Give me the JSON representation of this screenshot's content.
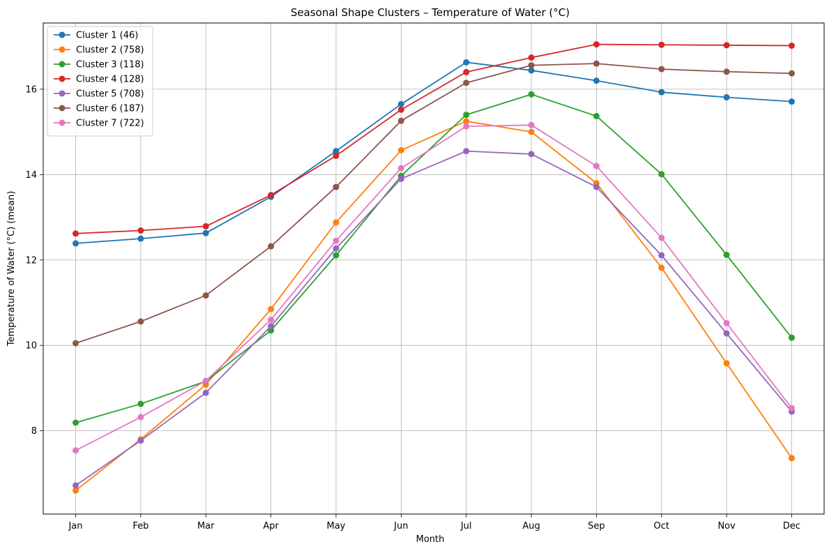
{
  "chart_data": {
    "type": "line",
    "title": "Seasonal Shape Clusters – Temperature of Water (°C)",
    "xlabel": "Month",
    "ylabel": "Temperature of Water (°C) (mean)",
    "categories": [
      "Jan",
      "Feb",
      "Mar",
      "Apr",
      "May",
      "Jun",
      "Jul",
      "Aug",
      "Sep",
      "Oct",
      "Nov",
      "Dec"
    ],
    "ylim": [
      6.05,
      17.55
    ],
    "yticks": [
      8,
      10,
      12,
      14,
      16
    ],
    "grid": true,
    "legend_position": "top-left",
    "series": [
      {
        "name": "Cluster 1 (46)",
        "color": "#1f77b4",
        "values": [
          12.39,
          12.5,
          12.63,
          13.48,
          14.55,
          15.65,
          16.63,
          16.44,
          16.2,
          15.93,
          15.81,
          15.71
        ]
      },
      {
        "name": "Cluster 2 (758)",
        "color": "#ff7f0e",
        "values": [
          6.6,
          7.8,
          9.08,
          10.85,
          12.88,
          14.57,
          15.25,
          15.0,
          13.8,
          11.82,
          9.58,
          7.36
        ]
      },
      {
        "name": "Cluster 3 (118)",
        "color": "#2ca02c",
        "values": [
          8.19,
          8.63,
          9.16,
          10.35,
          12.11,
          13.97,
          15.4,
          15.88,
          15.37,
          14.01,
          12.12,
          10.18
        ]
      },
      {
        "name": "Cluster 4 (128)",
        "color": "#d62728",
        "values": [
          12.62,
          12.69,
          12.79,
          13.52,
          14.44,
          15.52,
          16.4,
          16.74,
          17.05,
          17.04,
          17.03,
          17.02
        ]
      },
      {
        "name": "Cluster 5 (708)",
        "color": "#9467bd",
        "values": [
          6.72,
          7.77,
          8.89,
          10.45,
          12.27,
          13.9,
          14.55,
          14.48,
          13.71,
          12.11,
          10.28,
          8.45
        ]
      },
      {
        "name": "Cluster 6 (187)",
        "color": "#8c564b",
        "values": [
          10.05,
          10.56,
          11.17,
          12.32,
          13.71,
          15.26,
          16.15,
          16.56,
          16.6,
          16.47,
          16.41,
          16.37
        ]
      },
      {
        "name": "Cluster 7 (722)",
        "color": "#e377c2",
        "values": [
          7.54,
          8.32,
          9.17,
          10.6,
          12.45,
          14.15,
          15.13,
          15.16,
          14.2,
          12.52,
          10.52,
          8.53
        ]
      }
    ]
  }
}
